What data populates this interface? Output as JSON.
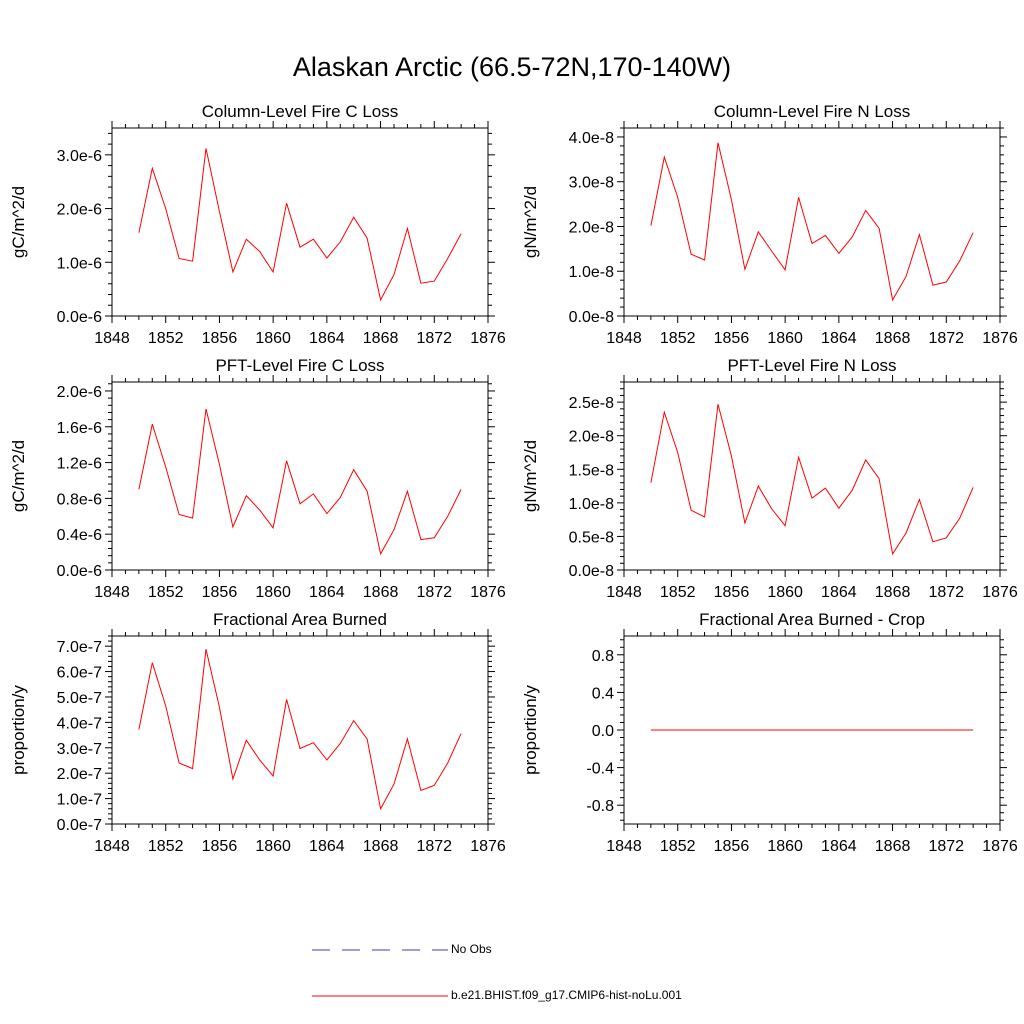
{
  "figure": {
    "title": "Alaskan Arctic (66.5-72N,170-140W)"
  },
  "legend": {
    "entries": [
      {
        "label": "No Obs",
        "color": "#3b3bb5",
        "style": "dashed"
      },
      {
        "label": "b.e21.BHIST.f09_g17.CMIP6-hist-noLu.001",
        "color": "#ff0000",
        "style": "solid"
      }
    ]
  },
  "chart_data": [
    {
      "type": "line",
      "title": "Column-Level Fire C Loss",
      "ylabel": "gC/m^2/d",
      "xlim": [
        1848,
        1876
      ],
      "ylim": [
        0,
        3.5e-06
      ],
      "xticks": [
        "1848",
        "1852",
        "1856",
        "1860",
        "1864",
        "1868",
        "1872",
        "1876"
      ],
      "yticks": [
        {
          "value": 0,
          "label": "0.0e-6"
        },
        {
          "value": 1e-06,
          "label": "1.0e-6"
        },
        {
          "value": 2e-06,
          "label": "2.0e-6"
        },
        {
          "value": 3e-06,
          "label": "3.0e-6"
        }
      ],
      "grid": false,
      "x": [
        1850,
        1851,
        1852,
        1853,
        1854,
        1855,
        1856,
        1857,
        1858,
        1859,
        1860,
        1861,
        1862,
        1863,
        1864,
        1865,
        1866,
        1867,
        1868,
        1869,
        1870,
        1871,
        1872,
        1873,
        1874
      ],
      "series": [
        {
          "name": "b.e21.BHIST.f09_g17.CMIP6-hist-noLu.001",
          "color": "#ff0000",
          "values": [
            1.55e-06,
            2.75e-06,
            2e-06,
            1.07e-06,
            1.02e-06,
            3.12e-06,
            1.95e-06,
            8.2e-07,
            1.43e-06,
            1.2e-06,
            8.2e-07,
            2.1e-06,
            1.28e-06,
            1.43e-06,
            1.08e-06,
            1.38e-06,
            1.84e-06,
            1.45e-06,
            3e-07,
            7.7e-07,
            1.63e-06,
            6.1e-07,
            6.5e-07,
            1.07e-06,
            1.53e-06
          ]
        }
      ]
    },
    {
      "type": "line",
      "title": "Column-Level Fire N Loss",
      "ylabel": "gN/m^2/d",
      "xlim": [
        1848,
        1876
      ],
      "ylim": [
        0,
        4.2e-08
      ],
      "xticks": [
        "1848",
        "1852",
        "1856",
        "1860",
        "1864",
        "1868",
        "1872",
        "1876"
      ],
      "yticks": [
        {
          "value": 0,
          "label": "0.0e-8"
        },
        {
          "value": 1e-08,
          "label": "1.0e-8"
        },
        {
          "value": 2e-08,
          "label": "2.0e-8"
        },
        {
          "value": 3e-08,
          "label": "3.0e-8"
        },
        {
          "value": 4e-08,
          "label": "4.0e-8"
        }
      ],
      "grid": false,
      "x": [
        1850,
        1851,
        1852,
        1853,
        1854,
        1855,
        1856,
        1857,
        1858,
        1859,
        1860,
        1861,
        1862,
        1863,
        1864,
        1865,
        1866,
        1867,
        1868,
        1869,
        1870,
        1871,
        1872,
        1873,
        1874
      ],
      "series": [
        {
          "name": "b.e21.BHIST.f09_g17.CMIP6-hist-noLu.001",
          "color": "#ff0000",
          "values": [
            2.02e-08,
            3.55e-08,
            2.65e-08,
            1.38e-08,
            1.25e-08,
            3.87e-08,
            2.6e-08,
            1.04e-08,
            1.88e-08,
            1.45e-08,
            1.03e-08,
            2.65e-08,
            1.62e-08,
            1.8e-08,
            1.4e-08,
            1.77e-08,
            2.36e-08,
            1.96e-08,
            3.6e-09,
            8.8e-09,
            1.82e-08,
            6.9e-09,
            7.6e-09,
            1.23e-08,
            1.86e-08
          ]
        }
      ]
    },
    {
      "type": "line",
      "title": "PFT-Level Fire C Loss",
      "ylabel": "gC/m^2/d",
      "xlim": [
        1848,
        1876
      ],
      "ylim": [
        0,
        2.1e-06
      ],
      "xticks": [
        "1848",
        "1852",
        "1856",
        "1860",
        "1864",
        "1868",
        "1872",
        "1876"
      ],
      "yticks": [
        {
          "value": 0,
          "label": "0.0e-6"
        },
        {
          "value": 4e-07,
          "label": "0.4e-6"
        },
        {
          "value": 8e-07,
          "label": "0.8e-6"
        },
        {
          "value": 1.2e-06,
          "label": "1.2e-6"
        },
        {
          "value": 1.6e-06,
          "label": "1.6e-6"
        },
        {
          "value": 2e-06,
          "label": "2.0e-6"
        }
      ],
      "grid": false,
      "x": [
        1850,
        1851,
        1852,
        1853,
        1854,
        1855,
        1856,
        1857,
        1858,
        1859,
        1860,
        1861,
        1862,
        1863,
        1864,
        1865,
        1866,
        1867,
        1868,
        1869,
        1870,
        1871,
        1872,
        1873,
        1874
      ],
      "series": [
        {
          "name": "b.e21.BHIST.f09_g17.CMIP6-hist-noLu.001",
          "color": "#ff0000",
          "values": [
            9e-07,
            1.63e-06,
            1.15e-06,
            6.2e-07,
            5.8e-07,
            1.8e-06,
            1.18e-06,
            4.8e-07,
            8.3e-07,
            6.7e-07,
            4.7e-07,
            1.22e-06,
            7.4e-07,
            8.5e-07,
            6.3e-07,
            8.1e-07,
            1.12e-06,
            8.8e-07,
            1.8e-07,
            4.5e-07,
            8.8e-07,
            3.4e-07,
            3.6e-07,
            6e-07,
            9e-07
          ]
        }
      ]
    },
    {
      "type": "line",
      "title": "PFT-Level Fire N Loss",
      "ylabel": "gN/m^2/d",
      "xlim": [
        1848,
        1876
      ],
      "ylim": [
        0,
        2.8e-08
      ],
      "xticks": [
        "1848",
        "1852",
        "1856",
        "1860",
        "1864",
        "1868",
        "1872",
        "1876"
      ],
      "yticks": [
        {
          "value": 0,
          "label": "0.0e-8"
        },
        {
          "value": 5e-09,
          "label": "0.5e-8"
        },
        {
          "value": 1e-08,
          "label": "1.0e-8"
        },
        {
          "value": 1.5e-08,
          "label": "1.5e-8"
        },
        {
          "value": 2e-08,
          "label": "2.0e-8"
        },
        {
          "value": 2.5e-08,
          "label": "2.5e-8"
        }
      ],
      "grid": false,
      "x": [
        1850,
        1851,
        1852,
        1853,
        1854,
        1855,
        1856,
        1857,
        1858,
        1859,
        1860,
        1861,
        1862,
        1863,
        1864,
        1865,
        1866,
        1867,
        1868,
        1869,
        1870,
        1871,
        1872,
        1873,
        1874
      ],
      "series": [
        {
          "name": "b.e21.BHIST.f09_g17.CMIP6-hist-noLu.001",
          "color": "#ff0000",
          "values": [
            1.3e-08,
            2.35e-08,
            1.75e-08,
            8.9e-09,
            7.9e-09,
            2.47e-08,
            1.7e-08,
            7e-09,
            1.25e-08,
            9.1e-09,
            6.6e-09,
            1.68e-08,
            1.07e-08,
            1.22e-08,
            9.2e-09,
            1.19e-08,
            1.64e-08,
            1.36e-08,
            2.4e-09,
            5.5e-09,
            1.05e-08,
            4.2e-09,
            4.8e-09,
            7.7e-09,
            1.23e-08
          ]
        }
      ]
    },
    {
      "type": "line",
      "title": "Fractional Area Burned",
      "ylabel": "proportion/y",
      "xlim": [
        1848,
        1876
      ],
      "ylim": [
        0,
        7.4e-07
      ],
      "xticks": [
        "1848",
        "1852",
        "1856",
        "1860",
        "1864",
        "1868",
        "1872",
        "1876"
      ],
      "yticks": [
        {
          "value": 0,
          "label": "0.0e-7"
        },
        {
          "value": 1e-07,
          "label": "1.0e-7"
        },
        {
          "value": 2e-07,
          "label": "2.0e-7"
        },
        {
          "value": 3e-07,
          "label": "3.0e-7"
        },
        {
          "value": 4e-07,
          "label": "4.0e-7"
        },
        {
          "value": 5e-07,
          "label": "5.0e-7"
        },
        {
          "value": 6e-07,
          "label": "6.0e-7"
        },
        {
          "value": 7e-07,
          "label": "7.0e-7"
        }
      ],
      "grid": false,
      "x": [
        1850,
        1851,
        1852,
        1853,
        1854,
        1855,
        1856,
        1857,
        1858,
        1859,
        1860,
        1861,
        1862,
        1863,
        1864,
        1865,
        1866,
        1867,
        1868,
        1869,
        1870,
        1871,
        1872,
        1873,
        1874
      ],
      "series": [
        {
          "name": "b.e21.BHIST.f09_g17.CMIP6-hist-noLu.001",
          "color": "#ff0000",
          "values": [
            3.72e-07,
            6.35e-07,
            4.65e-07,
            2.4e-07,
            2.18e-07,
            6.88e-07,
            4.6e-07,
            1.77e-07,
            3.3e-07,
            2.52e-07,
            1.89e-07,
            4.9e-07,
            2.97e-07,
            3.2e-07,
            2.52e-07,
            3.17e-07,
            4.07e-07,
            3.35e-07,
            6e-08,
            1.57e-07,
            3.35e-07,
            1.32e-07,
            1.52e-07,
            2.4e-07,
            3.56e-07
          ]
        }
      ]
    },
    {
      "type": "line",
      "title": "Fractional Area Burned - Crop",
      "ylabel": "proportion/y",
      "xlim": [
        1848,
        1876
      ],
      "ylim": [
        -1.0,
        1.0
      ],
      "xticks": [
        "1848",
        "1852",
        "1856",
        "1860",
        "1864",
        "1868",
        "1872",
        "1876"
      ],
      "yticks": [
        {
          "value": -0.8,
          "label": "-0.8"
        },
        {
          "value": -0.4,
          "label": "-0.4"
        },
        {
          "value": 0,
          "label": "0.0"
        },
        {
          "value": 0.4,
          "label": "0.4"
        },
        {
          "value": 0.8,
          "label": "0.8"
        }
      ],
      "grid": false,
      "x": [
        1850,
        1851,
        1852,
        1853,
        1854,
        1855,
        1856,
        1857,
        1858,
        1859,
        1860,
        1861,
        1862,
        1863,
        1864,
        1865,
        1866,
        1867,
        1868,
        1869,
        1870,
        1871,
        1872,
        1873,
        1874
      ],
      "series": [
        {
          "name": "b.e21.BHIST.f09_g17.CMIP6-hist-noLu.001",
          "color": "#ff0000",
          "values": [
            0,
            0,
            0,
            0,
            0,
            0,
            0,
            0,
            0,
            0,
            0,
            0,
            0,
            0,
            0,
            0,
            0,
            0,
            0,
            0,
            0,
            0,
            0,
            0,
            0
          ]
        }
      ]
    }
  ]
}
